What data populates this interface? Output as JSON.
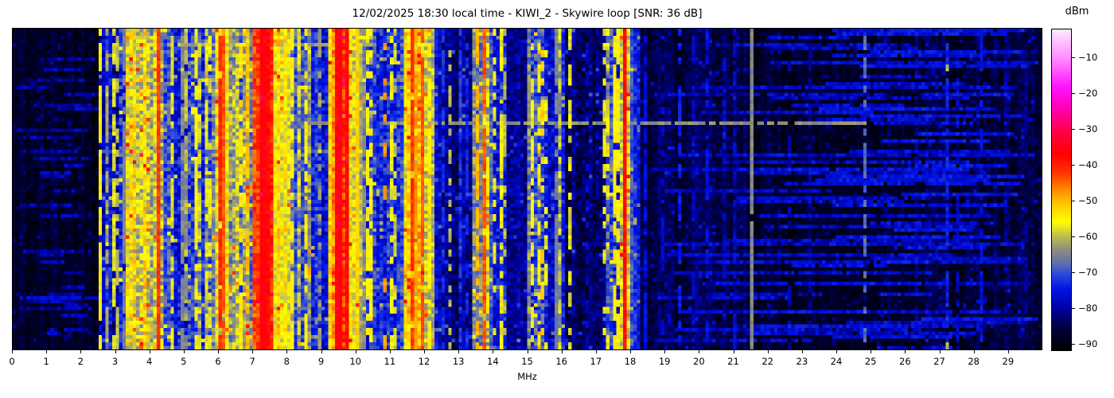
{
  "chart_data": {
    "type": "heatmap",
    "subtype": "radio-spectrum-waterfall",
    "title": "12/02/2025 18:30 local time - KIWI_2 - Skywire loop [SNR: 36 dB]",
    "xlabel": "MHz",
    "x_range": [
      0,
      30
    ],
    "x_ticks": [
      0,
      1,
      2,
      3,
      4,
      5,
      6,
      7,
      8,
      9,
      10,
      11,
      12,
      13,
      14,
      15,
      16,
      17,
      18,
      19,
      20,
      21,
      22,
      23,
      24,
      25,
      26,
      27,
      28,
      29
    ],
    "x_tick_labels": [
      "0",
      "1",
      "2",
      "3",
      "4",
      "5",
      "6",
      "7",
      "8",
      "9",
      "10",
      "11",
      "12",
      "13",
      "14",
      "15",
      "16",
      "17",
      "18",
      "19",
      "20",
      "21",
      "22",
      "23",
      "24",
      "25",
      "26",
      "27",
      "28",
      "29"
    ],
    "grid_on": false,
    "legend": "none",
    "colorbar": {
      "label": "dBm",
      "tick_values": [
        -10,
        -20,
        -30,
        -40,
        -50,
        -60,
        -70,
        -80,
        -90
      ],
      "tick_labels": [
        "−10",
        "−20",
        "−30",
        "−40",
        "−50",
        "−60",
        "−70",
        "−80",
        "−90"
      ],
      "vmin": -92,
      "vmax": -2,
      "colormap_stops": [
        [
          -92,
          "#000000"
        ],
        [
          -86,
          "#00003c"
        ],
        [
          -80,
          "#0000a8"
        ],
        [
          -75,
          "#0014e6"
        ],
        [
          -71,
          "#2846dc"
        ],
        [
          -68,
          "#5a6eb4"
        ],
        [
          -64,
          "#8c8c82"
        ],
        [
          -60,
          "#bebe50"
        ],
        [
          -56,
          "#ffff00"
        ],
        [
          -51,
          "#ffc800"
        ],
        [
          -47,
          "#ff8c00"
        ],
        [
          -42,
          "#ff3200"
        ],
        [
          -37,
          "#ff0000"
        ],
        [
          -30,
          "#ff0050"
        ],
        [
          -24,
          "#ff00b4"
        ],
        [
          -18,
          "#ff14ff"
        ],
        [
          -10,
          "#ff8cff"
        ],
        [
          -2,
          "#ffe6ff"
        ]
      ]
    },
    "grid": {
      "cols": 300,
      "rows": 90,
      "seed": 42
    },
    "bands_mhz_level_dbm_var": [
      [
        3.45,
        3.95,
        -54,
        8
      ],
      [
        7.1,
        7.5,
        -40,
        5
      ],
      [
        9.35,
        9.8,
        -44,
        6
      ],
      [
        0.0,
        2.5,
        -88,
        3
      ],
      [
        2.5,
        3.3,
        -76,
        7
      ],
      [
        3.3,
        4.45,
        -60,
        8
      ],
      [
        4.45,
        5.55,
        -73,
        7
      ],
      [
        5.55,
        5.95,
        -70,
        7
      ],
      [
        5.95,
        6.35,
        -54,
        7
      ],
      [
        6.35,
        7.05,
        -64,
        8
      ],
      [
        7.05,
        7.65,
        -45,
        6
      ],
      [
        7.65,
        8.1,
        -56,
        6
      ],
      [
        8.1,
        8.75,
        -68,
        7
      ],
      [
        8.75,
        9.25,
        -76,
        6
      ],
      [
        9.25,
        9.95,
        -51,
        7
      ],
      [
        9.95,
        10.2,
        -58,
        6
      ],
      [
        10.2,
        11.45,
        -73,
        6
      ],
      [
        11.45,
        12.1,
        -54,
        7
      ],
      [
        12.1,
        12.3,
        -62,
        6
      ],
      [
        12.3,
        13.4,
        -81,
        5
      ],
      [
        13.4,
        13.95,
        -63,
        7
      ],
      [
        13.95,
        14.45,
        -73,
        6
      ],
      [
        14.45,
        15.05,
        -81,
        5
      ],
      [
        15.05,
        15.5,
        -70,
        8
      ],
      [
        15.5,
        16.1,
        -76,
        6
      ],
      [
        16.1,
        17.3,
        -83,
        5
      ],
      [
        17.3,
        17.75,
        -73,
        7
      ],
      [
        17.75,
        18.0,
        -62,
        8
      ],
      [
        18.0,
        18.3,
        -73,
        5
      ],
      [
        18.3,
        21.45,
        -86,
        4
      ],
      [
        21.45,
        26.65,
        -88,
        3
      ],
      [
        26.65,
        30.0,
        -87,
        4
      ]
    ],
    "vlines_mhz_level_dash_width": [
      [
        2.55,
        -56,
        0.85,
        1
      ],
      [
        2.7,
        -62,
        0.5,
        1
      ],
      [
        2.9,
        -58,
        0.65,
        1
      ],
      [
        3.05,
        -60,
        0.55,
        1
      ],
      [
        3.2,
        -66,
        0.8,
        1
      ],
      [
        4.2,
        -42,
        0.95,
        1
      ],
      [
        4.65,
        -58,
        0.65,
        1
      ],
      [
        4.9,
        -65,
        0.85,
        2
      ],
      [
        5.05,
        -60,
        0.55,
        1
      ],
      [
        5.3,
        -56,
        0.75,
        1
      ],
      [
        5.45,
        -58,
        0.55,
        1
      ],
      [
        5.62,
        -57,
        0.65,
        1
      ],
      [
        5.78,
        -58,
        0.5,
        1
      ],
      [
        6.05,
        -41,
        0.95,
        1
      ],
      [
        6.18,
        -44,
        0.9,
        1
      ],
      [
        6.6,
        -54,
        0.65,
        1
      ],
      [
        6.8,
        -50,
        0.75,
        1
      ],
      [
        7.0,
        -47,
        0.8,
        1
      ],
      [
        7.2,
        -36,
        1,
        1
      ],
      [
        7.32,
        -37,
        1,
        1
      ],
      [
        7.44,
        -38,
        1,
        1
      ],
      [
        8.12,
        -56,
        0.6,
        1
      ],
      [
        8.35,
        -58,
        0.5,
        1
      ],
      [
        8.55,
        -55,
        0.65,
        1
      ],
      [
        8.95,
        -63,
        0.5,
        1
      ],
      [
        9.42,
        -37,
        1,
        1
      ],
      [
        9.55,
        -35,
        1,
        1
      ],
      [
        9.7,
        -38,
        1,
        1
      ],
      [
        10.05,
        -52,
        0.8,
        1
      ],
      [
        10.18,
        -64,
        0.8,
        2
      ],
      [
        10.3,
        -56,
        0.6,
        1
      ],
      [
        10.45,
        -55,
        0.6,
        1
      ],
      [
        10.8,
        -48,
        0.3,
        1
      ],
      [
        11.0,
        -57,
        0.5,
        1
      ],
      [
        11.18,
        -59,
        0.45,
        1
      ],
      [
        11.6,
        -42,
        0.9,
        1
      ],
      [
        11.75,
        -48,
        0.8,
        1
      ],
      [
        11.9,
        -44,
        0.85,
        1
      ],
      [
        12.1,
        -55,
        0.6,
        1
      ],
      [
        12.35,
        -74,
        0.5,
        1
      ],
      [
        12.55,
        -73,
        0.5,
        1
      ],
      [
        12.7,
        -60,
        0.4,
        1
      ],
      [
        13.0,
        -72,
        0.5,
        1
      ],
      [
        13.2,
        -74,
        0.5,
        1
      ],
      [
        13.57,
        -50,
        0.7,
        1
      ],
      [
        13.7,
        -44,
        0.85,
        1
      ],
      [
        13.85,
        -55,
        0.6,
        1
      ],
      [
        14.05,
        -57,
        0.5,
        1
      ],
      [
        14.2,
        -57,
        0.5,
        1
      ],
      [
        14.32,
        -60,
        0.4,
        1
      ],
      [
        15.15,
        -57,
        0.5,
        1
      ],
      [
        15.3,
        -56,
        0.55,
        1
      ],
      [
        15.43,
        -52,
        0.35,
        1
      ],
      [
        15.55,
        -57,
        0.4,
        1
      ],
      [
        15.8,
        -66,
        0.85,
        2
      ],
      [
        15.95,
        -58,
        0.5,
        1
      ],
      [
        16.27,
        -58,
        0.55,
        1
      ],
      [
        16.7,
        -78,
        0.5,
        1
      ],
      [
        17.2,
        -57,
        0.5,
        1
      ],
      [
        17.35,
        -58,
        0.5,
        1
      ],
      [
        17.5,
        -55,
        0.8,
        1
      ],
      [
        17.65,
        -56,
        0.7,
        1
      ],
      [
        17.82,
        -38,
        1,
        1
      ],
      [
        17.88,
        -50,
        0.9,
        1
      ],
      [
        18.45,
        -76,
        0.6,
        1
      ],
      [
        18.9,
        -78,
        0.5,
        1
      ],
      [
        19.4,
        -75,
        0.55,
        1
      ],
      [
        19.8,
        -78,
        0.5,
        1
      ],
      [
        20.2,
        -76,
        0.5,
        1
      ],
      [
        20.7,
        -78,
        0.4,
        1
      ],
      [
        21.0,
        -77,
        0.4,
        1
      ],
      [
        21.5,
        -65,
        0.95,
        1
      ],
      [
        22.6,
        -80,
        0.35,
        1
      ],
      [
        23.2,
        -81,
        0.35,
        1
      ],
      [
        24.8,
        -68,
        0.55,
        1
      ],
      [
        25.4,
        -81,
        0.3,
        1
      ],
      [
        26.3,
        -81,
        0.3,
        1
      ],
      [
        27.2,
        -74,
        0.65,
        1
      ],
      [
        27.2,
        -60,
        0.06,
        1
      ],
      [
        27.5,
        -78,
        0.5,
        1
      ],
      [
        28.2,
        -76,
        0.55,
        1
      ],
      [
        28.9,
        -81,
        0.3,
        1
      ],
      [
        29.5,
        -81,
        0.3,
        1
      ]
    ],
    "hstreaks_row_f0_f1_level_prob": [
      [
        4,
        3.3,
        10.6,
        -63,
        0.85
      ],
      [
        26,
        8.6,
        24.9,
        -64,
        0.9
      ],
      [
        34,
        2.5,
        9.9,
        -70,
        0.5
      ],
      [
        46,
        10.2,
        16.0,
        -72,
        0.5
      ],
      [
        75,
        0.2,
        9.6,
        -77,
        0.8
      ]
    ],
    "noise_streak_zones": [
      {
        "f0": 0.1,
        "f1": 2.5,
        "row_prob": 0.28,
        "level": -80,
        "lvar": 4
      },
      {
        "f0": 18.25,
        "f1": 30.0,
        "row_prob": 0.5,
        "level": -78,
        "lvar": 4
      },
      {
        "f0": 21.5,
        "f1": 30.0,
        "row_prob": 0.25,
        "level": -76,
        "lvar": 3
      }
    ]
  }
}
